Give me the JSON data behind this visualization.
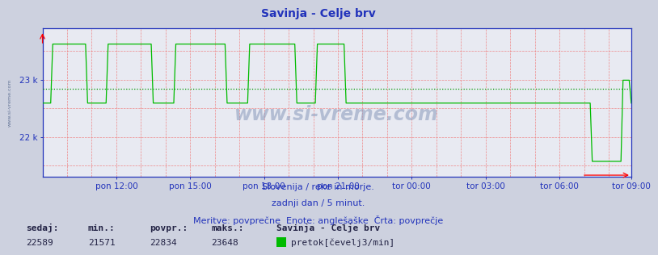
{
  "title": "Savinja - Celje brv",
  "bg_color": "#cdd1df",
  "plot_bg_color": "#e8eaf2",
  "grid_color": "#ee8888",
  "line_color": "#00bb00",
  "avg_line_color": "#009900",
  "axis_color": "#2233bb",
  "title_color": "#2233bb",
  "y_min": 21300,
  "y_max": 23900,
  "avg_value": 22834,
  "min_value": 21571,
  "max_value": 23648,
  "current_value": 22589,
  "base_value": 22589,
  "high_value": 23620,
  "low_value": 21571,
  "n_points": 288,
  "xlabel_times": [
    "pon 12:00",
    "pon 15:00",
    "pon 18:00",
    "pon 21:00",
    "tor 00:00",
    "tor 03:00",
    "tor 06:00",
    "tor 09:00"
  ],
  "xtick_positions": [
    36,
    72,
    108,
    144,
    180,
    216,
    252,
    287
  ],
  "ytick_positions": [
    22000,
    23000
  ],
  "ytick_labels": [
    "22 k",
    "23 k"
  ],
  "subtitle1": "Slovenija / reke in morje.",
  "subtitle2": "zadnji dan / 5 minut.",
  "subtitle3": "Meritve: povprečne  Enote: anglešaške  Črta: povprečje",
  "bottom_labels": [
    "sedaj:",
    "min.:",
    "povpr.:",
    "maks.:"
  ],
  "bottom_values": [
    "22589",
    "21571",
    "22834",
    "23648"
  ],
  "bottom_station": "Savinja - Celje brv",
  "legend_label": "pretok[čevelj3/min]",
  "watermark": "www.si-vreme.com",
  "left_label": "www.si-vreme.com"
}
